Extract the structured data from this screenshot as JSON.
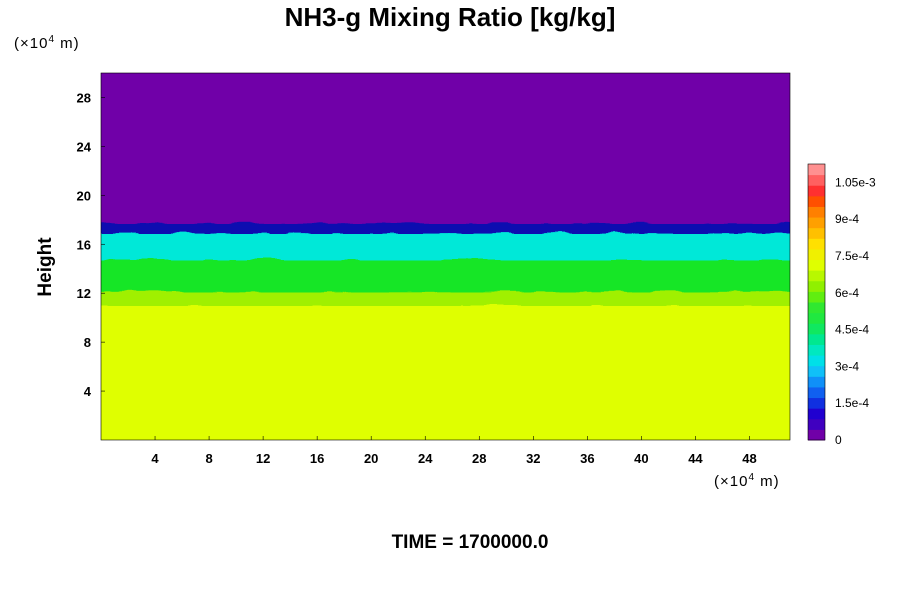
{
  "chart_data": {
    "type": "heatmap",
    "title": "NH3-g Mixing Ratio [kg/kg]",
    "ylabel": "Height",
    "xlabel": "",
    "x_unit": "(×10",
    "x_unit_exp": "4",
    "x_unit_suffix": " m)",
    "y_unit": "(×10",
    "y_unit_exp": "4",
    "y_unit_suffix": " m)",
    "xlim": [
      0,
      51
    ],
    "ylim": [
      0,
      30
    ],
    "xticks": [
      "4",
      "8",
      "12",
      "16",
      "20",
      "24",
      "28",
      "32",
      "36",
      "40",
      "44",
      "48"
    ],
    "yticks": [
      "4",
      "8",
      "12",
      "16",
      "20",
      "24",
      "28"
    ],
    "time_label": "TIME = 1700000.0",
    "layers": [
      {
        "from_height": 0,
        "to_height": 11.2,
        "value": 0.00079,
        "description_color": "#dfff00"
      },
      {
        "from_height": 11.2,
        "to_height": 12.4,
        "value": 0.00066,
        "description_color": "#a0f000"
      },
      {
        "from_height": 12.4,
        "to_height": 15.0,
        "value": 0.00052,
        "description_color": "#18e628"
      },
      {
        "from_height": 15.0,
        "to_height": 17.2,
        "value": 0.00036,
        "description_color": "#00e8d8"
      },
      {
        "from_height": 17.2,
        "to_height": 18.0,
        "value": 0.00012,
        "description_color": "#1010b0"
      },
      {
        "from_height": 18.0,
        "to_height": 30,
        "value": 0,
        "description_color": "#7000a8"
      }
    ],
    "colorbar": {
      "range": [
        0,
        0.001125
      ],
      "ticks": [
        "0",
        "1.5e-4",
        "3e-4",
        "4.5e-4",
        "6e-4",
        "7.5e-4",
        "9e-4",
        "1.05e-3"
      ],
      "tick_values": [
        0,
        0.00015,
        0.0003,
        0.00045,
        0.0006,
        0.00075,
        0.0009,
        0.00105
      ],
      "colors": [
        "#7000a8",
        "#4000c0",
        "#2000d0",
        "#1030e0",
        "#1060f0",
        "#1090f8",
        "#10c0f8",
        "#00e0e8",
        "#00e8c0",
        "#00e890",
        "#10e860",
        "#20e840",
        "#30e830",
        "#60ee10",
        "#90f000",
        "#b8f800",
        "#dfff00",
        "#f0f000",
        "#ffe000",
        "#ffc000",
        "#ffa000",
        "#ff8000",
        "#ff5000",
        "#ff3030",
        "#ff6060",
        "#ff9090"
      ]
    }
  }
}
